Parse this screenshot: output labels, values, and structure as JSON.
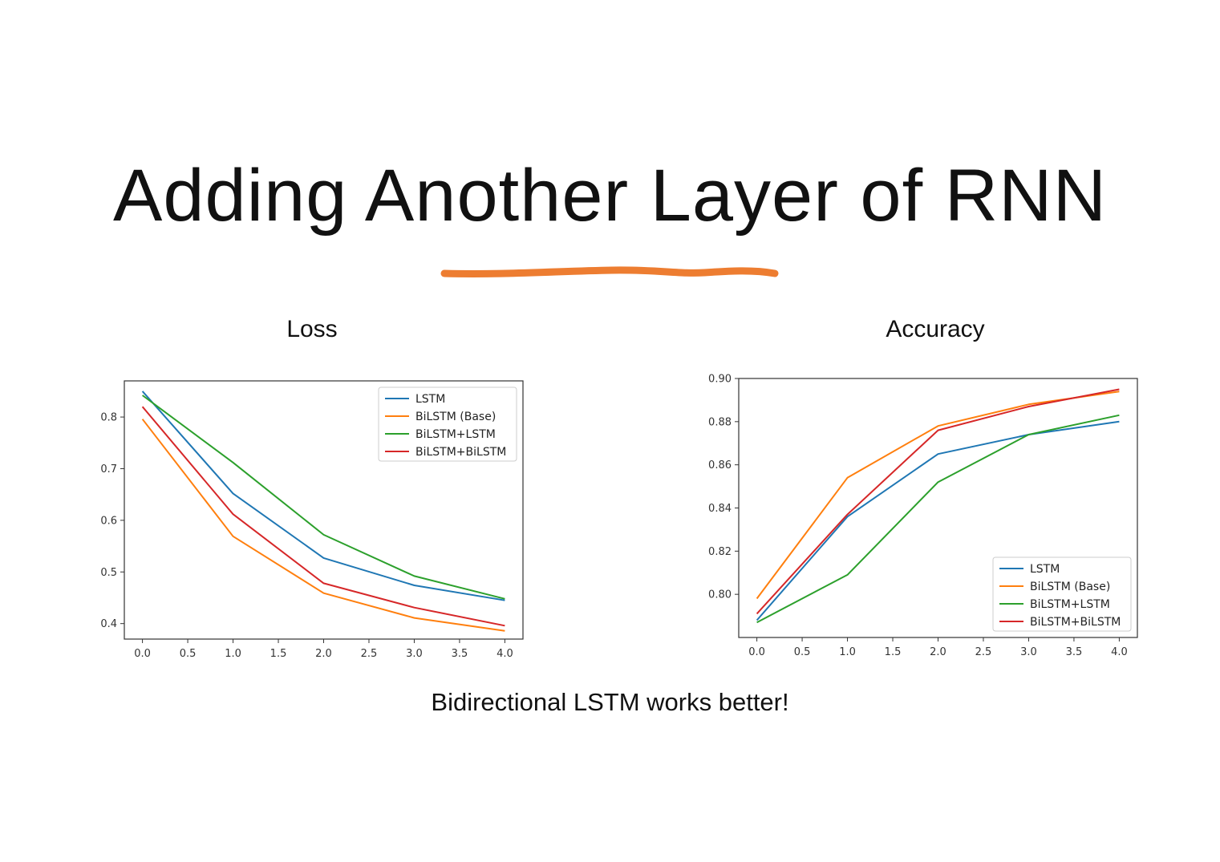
{
  "slide": {
    "title": "Adding Another Layer of RNN",
    "caption": "Bidirectional LSTM works better!",
    "accent_color": "#ed7d31"
  },
  "series_colors": {
    "LSTM": "#1f77b4",
    "BiLSTM (Base)": "#ff7f0e",
    "BiLSTM+LSTM": "#2ca02c",
    "BiLSTM+BiLSTM": "#d62728"
  },
  "chart_data": [
    {
      "type": "line",
      "title": "Loss",
      "xlabel": "",
      "ylabel": "",
      "x": [
        0,
        1,
        2,
        3,
        4
      ],
      "xlim": [
        -0.2,
        4.2
      ],
      "ylim": [
        0.37,
        0.87
      ],
      "xticks": [
        "0.0",
        "0.5",
        "1.0",
        "1.5",
        "2.0",
        "2.5",
        "3.0",
        "3.5",
        "4.0"
      ],
      "yticks": [
        "0.4",
        "0.5",
        "0.6",
        "0.7",
        "0.8"
      ],
      "legend_position": "top-right",
      "grid": false,
      "series": [
        {
          "name": "LSTM",
          "values": [
            0.85,
            0.652,
            0.527,
            0.474,
            0.445
          ]
        },
        {
          "name": "BiLSTM (Base)",
          "values": [
            0.796,
            0.569,
            0.459,
            0.411,
            0.386
          ]
        },
        {
          "name": "BiLSTM+LSTM",
          "values": [
            0.842,
            0.712,
            0.572,
            0.492,
            0.448
          ]
        },
        {
          "name": "BiLSTM+BiLSTM",
          "values": [
            0.82,
            0.612,
            0.478,
            0.431,
            0.396
          ]
        }
      ]
    },
    {
      "type": "line",
      "title": "Accuracy",
      "xlabel": "",
      "ylabel": "",
      "x": [
        0,
        1,
        2,
        3,
        4
      ],
      "xlim": [
        -0.2,
        4.2
      ],
      "ylim": [
        0.78,
        0.9
      ],
      "xticks": [
        "0.0",
        "0.5",
        "1.0",
        "1.5",
        "2.0",
        "2.5",
        "3.0",
        "3.5",
        "4.0"
      ],
      "yticks": [
        "0.80",
        "0.82",
        "0.84",
        "0.86",
        "0.88",
        "0.90"
      ],
      "legend_position": "bottom-right",
      "grid": false,
      "series": [
        {
          "name": "LSTM",
          "values": [
            0.788,
            0.836,
            0.865,
            0.874,
            0.88
          ]
        },
        {
          "name": "BiLSTM (Base)",
          "values": [
            0.798,
            0.854,
            0.878,
            0.888,
            0.894
          ]
        },
        {
          "name": "BiLSTM+LSTM",
          "values": [
            0.787,
            0.809,
            0.852,
            0.874,
            0.883
          ]
        },
        {
          "name": "BiLSTM+BiLSTM",
          "values": [
            0.791,
            0.837,
            0.876,
            0.887,
            0.895
          ]
        }
      ]
    }
  ]
}
